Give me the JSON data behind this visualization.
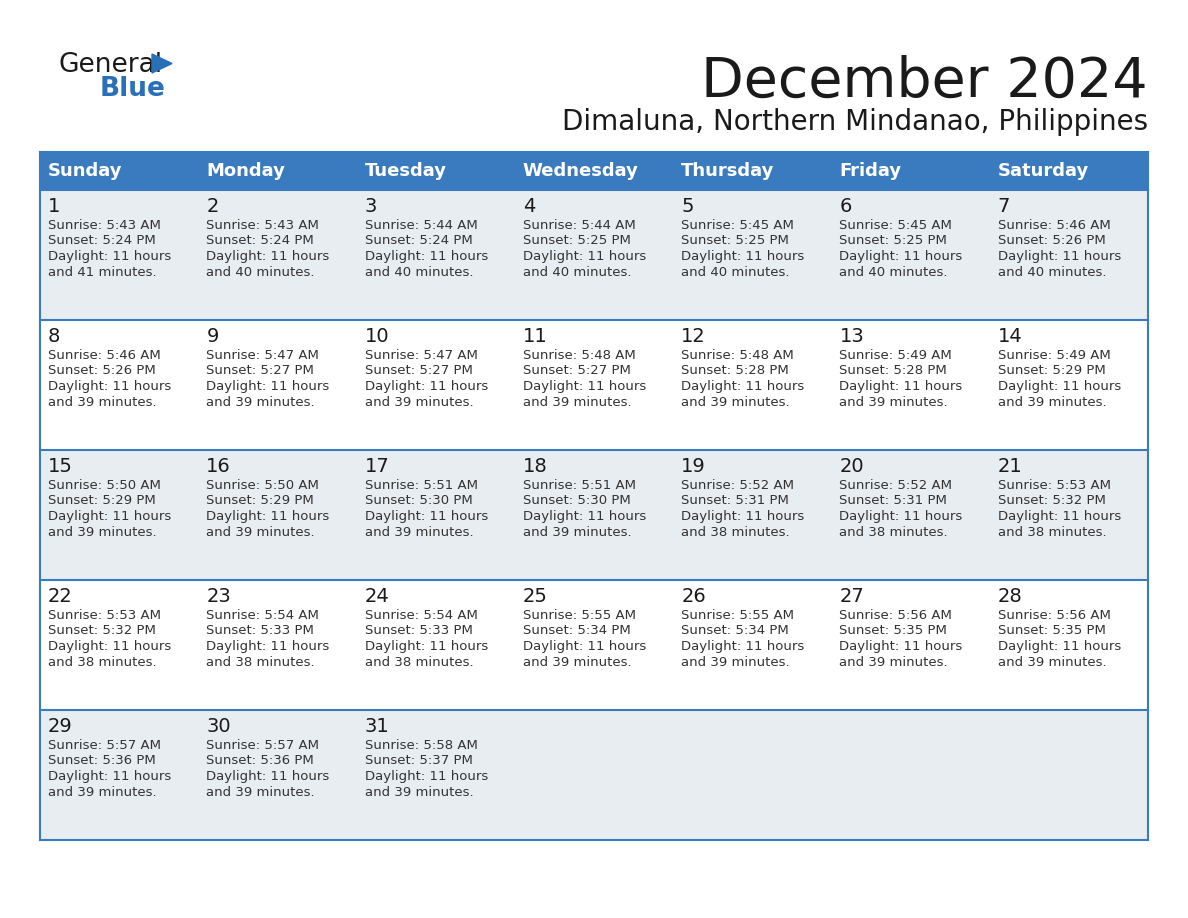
{
  "title": "December 2024",
  "subtitle": "Dimaluna, Northern Mindanao, Philippines",
  "header_bg": "#3a7bbf",
  "header_text": "#ffffff",
  "row_bg_odd": "#e8edf2",
  "row_bg_even": "#ffffff",
  "border_color": "#3a7bbf",
  "text_color": "#1a1a1a",
  "cell_text_color": "#333333",
  "day_names": [
    "Sunday",
    "Monday",
    "Tuesday",
    "Wednesday",
    "Thursday",
    "Friday",
    "Saturday"
  ],
  "days": [
    {
      "day": 1,
      "col": 0,
      "row": 0,
      "sunrise": "5:43 AM",
      "sunset": "5:24 PM",
      "daylight": "11 hours and 41 minutes."
    },
    {
      "day": 2,
      "col": 1,
      "row": 0,
      "sunrise": "5:43 AM",
      "sunset": "5:24 PM",
      "daylight": "11 hours and 40 minutes."
    },
    {
      "day": 3,
      "col": 2,
      "row": 0,
      "sunrise": "5:44 AM",
      "sunset": "5:24 PM",
      "daylight": "11 hours and 40 minutes."
    },
    {
      "day": 4,
      "col": 3,
      "row": 0,
      "sunrise": "5:44 AM",
      "sunset": "5:25 PM",
      "daylight": "11 hours and 40 minutes."
    },
    {
      "day": 5,
      "col": 4,
      "row": 0,
      "sunrise": "5:45 AM",
      "sunset": "5:25 PM",
      "daylight": "11 hours and 40 minutes."
    },
    {
      "day": 6,
      "col": 5,
      "row": 0,
      "sunrise": "5:45 AM",
      "sunset": "5:25 PM",
      "daylight": "11 hours and 40 minutes."
    },
    {
      "day": 7,
      "col": 6,
      "row": 0,
      "sunrise": "5:46 AM",
      "sunset": "5:26 PM",
      "daylight": "11 hours and 40 minutes."
    },
    {
      "day": 8,
      "col": 0,
      "row": 1,
      "sunrise": "5:46 AM",
      "sunset": "5:26 PM",
      "daylight": "11 hours and 39 minutes."
    },
    {
      "day": 9,
      "col": 1,
      "row": 1,
      "sunrise": "5:47 AM",
      "sunset": "5:27 PM",
      "daylight": "11 hours and 39 minutes."
    },
    {
      "day": 10,
      "col": 2,
      "row": 1,
      "sunrise": "5:47 AM",
      "sunset": "5:27 PM",
      "daylight": "11 hours and 39 minutes."
    },
    {
      "day": 11,
      "col": 3,
      "row": 1,
      "sunrise": "5:48 AM",
      "sunset": "5:27 PM",
      "daylight": "11 hours and 39 minutes."
    },
    {
      "day": 12,
      "col": 4,
      "row": 1,
      "sunrise": "5:48 AM",
      "sunset": "5:28 PM",
      "daylight": "11 hours and 39 minutes."
    },
    {
      "day": 13,
      "col": 5,
      "row": 1,
      "sunrise": "5:49 AM",
      "sunset": "5:28 PM",
      "daylight": "11 hours and 39 minutes."
    },
    {
      "day": 14,
      "col": 6,
      "row": 1,
      "sunrise": "5:49 AM",
      "sunset": "5:29 PM",
      "daylight": "11 hours and 39 minutes."
    },
    {
      "day": 15,
      "col": 0,
      "row": 2,
      "sunrise": "5:50 AM",
      "sunset": "5:29 PM",
      "daylight": "11 hours and 39 minutes."
    },
    {
      "day": 16,
      "col": 1,
      "row": 2,
      "sunrise": "5:50 AM",
      "sunset": "5:29 PM",
      "daylight": "11 hours and 39 minutes."
    },
    {
      "day": 17,
      "col": 2,
      "row": 2,
      "sunrise": "5:51 AM",
      "sunset": "5:30 PM",
      "daylight": "11 hours and 39 minutes."
    },
    {
      "day": 18,
      "col": 3,
      "row": 2,
      "sunrise": "5:51 AM",
      "sunset": "5:30 PM",
      "daylight": "11 hours and 39 minutes."
    },
    {
      "day": 19,
      "col": 4,
      "row": 2,
      "sunrise": "5:52 AM",
      "sunset": "5:31 PM",
      "daylight": "11 hours and 38 minutes."
    },
    {
      "day": 20,
      "col": 5,
      "row": 2,
      "sunrise": "5:52 AM",
      "sunset": "5:31 PM",
      "daylight": "11 hours and 38 minutes."
    },
    {
      "day": 21,
      "col": 6,
      "row": 2,
      "sunrise": "5:53 AM",
      "sunset": "5:32 PM",
      "daylight": "11 hours and 38 minutes."
    },
    {
      "day": 22,
      "col": 0,
      "row": 3,
      "sunrise": "5:53 AM",
      "sunset": "5:32 PM",
      "daylight": "11 hours and 38 minutes."
    },
    {
      "day": 23,
      "col": 1,
      "row": 3,
      "sunrise": "5:54 AM",
      "sunset": "5:33 PM",
      "daylight": "11 hours and 38 minutes."
    },
    {
      "day": 24,
      "col": 2,
      "row": 3,
      "sunrise": "5:54 AM",
      "sunset": "5:33 PM",
      "daylight": "11 hours and 38 minutes."
    },
    {
      "day": 25,
      "col": 3,
      "row": 3,
      "sunrise": "5:55 AM",
      "sunset": "5:34 PM",
      "daylight": "11 hours and 39 minutes."
    },
    {
      "day": 26,
      "col": 4,
      "row": 3,
      "sunrise": "5:55 AM",
      "sunset": "5:34 PM",
      "daylight": "11 hours and 39 minutes."
    },
    {
      "day": 27,
      "col": 5,
      "row": 3,
      "sunrise": "5:56 AM",
      "sunset": "5:35 PM",
      "daylight": "11 hours and 39 minutes."
    },
    {
      "day": 28,
      "col": 6,
      "row": 3,
      "sunrise": "5:56 AM",
      "sunset": "5:35 PM",
      "daylight": "11 hours and 39 minutes."
    },
    {
      "day": 29,
      "col": 0,
      "row": 4,
      "sunrise": "5:57 AM",
      "sunset": "5:36 PM",
      "daylight": "11 hours and 39 minutes."
    },
    {
      "day": 30,
      "col": 1,
      "row": 4,
      "sunrise": "5:57 AM",
      "sunset": "5:36 PM",
      "daylight": "11 hours and 39 minutes."
    },
    {
      "day": 31,
      "col": 2,
      "row": 4,
      "sunrise": "5:58 AM",
      "sunset": "5:37 PM",
      "daylight": "11 hours and 39 minutes."
    }
  ],
  "logo_color_general": "#1a1a1a",
  "logo_color_blue": "#2970b8",
  "logo_triangle_color": "#2970b8",
  "title_fontsize": 40,
  "subtitle_fontsize": 20,
  "header_fontsize": 13,
  "day_num_fontsize": 14,
  "cell_fontsize": 9.5
}
